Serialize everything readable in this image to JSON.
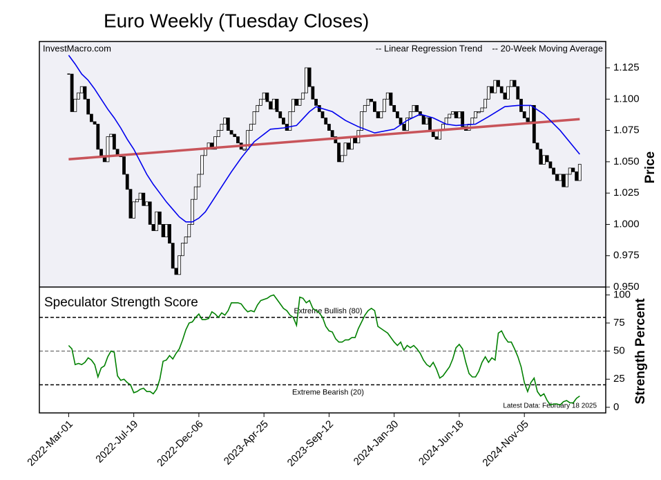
{
  "chart_data": [
    {
      "type": "candlestick",
      "title": "Euro Weekly (Tuesday Closes)",
      "annotation": "InvestMacro.com",
      "ylabel": "Price",
      "legend": "upper right",
      "xlim": [
        -9,
        165
      ],
      "ylim": [
        0.95,
        1.146
      ],
      "yticks": [
        {
          "value": 0.95,
          "label": "0.950"
        },
        0.975,
        {
          "value": 1.0,
          "label": "1.000"
        },
        1.025,
        {
          "value": 1.05,
          "label": "1.050"
        },
        1.075,
        {
          "value": 1.1,
          "label": "1.100"
        },
        1.125
      ],
      "series": [
        {
          "type": "candlestick",
          "color": "#000000",
          "values": [
            1.12,
            1.09,
            1.1,
            1.105,
            1.11,
            1.1,
            1.088,
            1.082,
            1.08,
            1.06,
            1.055,
            1.05,
            1.07,
            1.072,
            1.06,
            1.055,
            1.054,
            1.04,
            1.028,
            1.005,
            1.018,
            1.02,
            1.025,
            1.015,
            1.018,
            1.0,
            0.995,
            1.01,
            1.0,
            0.99,
            1.0,
            0.985,
            0.965,
            0.96,
            0.975,
            0.985,
            0.99,
            1.0,
            1.02,
            1.03,
            1.04,
            1.055,
            1.06,
            1.065,
            1.06,
            1.07,
            1.075,
            1.08,
            1.085,
            1.075,
            1.072,
            1.07,
            1.065,
            1.06,
            1.06,
            1.075,
            1.08,
            1.09,
            1.095,
            1.1,
            1.105,
            1.098,
            1.092,
            1.1,
            1.09,
            1.085,
            1.08,
            1.075,
            1.09,
            1.1,
            1.095,
            1.1,
            1.105,
            1.125,
            1.11,
            1.1,
            1.095,
            1.09,
            1.085,
            1.08,
            1.075,
            1.07,
            1.065,
            1.05,
            1.055,
            1.065,
            1.06,
            1.07,
            1.065,
            1.075,
            1.09,
            1.095,
            1.1,
            1.098,
            1.09,
            1.085,
            1.09,
            1.1,
            1.105,
            1.095,
            1.09,
            1.085,
            1.08,
            1.075,
            1.085,
            1.09,
            1.095,
            1.09,
            1.087,
            1.08,
            1.085,
            1.075,
            1.07,
            1.068,
            1.075,
            1.08,
            1.085,
            1.088,
            1.09,
            1.085,
            1.09,
            1.078,
            1.075,
            1.08,
            1.085,
            1.09,
            1.09,
            1.093,
            1.1,
            1.11,
            1.105,
            1.115,
            1.11,
            1.105,
            1.1,
            1.11,
            1.115,
            1.11,
            1.1,
            1.09,
            1.085,
            1.082,
            1.095,
            1.065,
            1.06,
            1.048,
            1.055,
            1.05,
            1.045,
            1.04,
            1.035,
            1.04,
            1.03,
            1.04,
            1.045,
            1.042,
            1.035,
            1.048
          ]
        },
        {
          "type": "line",
          "name": "-- Linear Regression Trend",
          "color": "#c8545a",
          "x": [
            0,
            157
          ],
          "values": [
            1.052,
            1.084
          ]
        },
        {
          "type": "line",
          "name": "-- 20-Week Moving Average",
          "color": "#0000ee",
          "x": [
            0,
            2,
            4,
            6,
            8,
            10,
            12,
            14,
            16,
            18,
            20,
            22,
            24,
            26,
            28,
            30,
            32,
            34,
            36,
            38,
            40,
            42,
            44,
            47,
            50,
            53,
            57,
            62,
            66,
            70,
            74,
            76,
            81,
            85,
            89,
            94,
            100,
            104,
            108,
            112,
            116,
            119,
            125,
            129,
            134,
            138,
            142,
            146,
            151,
            157
          ],
          "values": [
            1.135,
            1.128,
            1.12,
            1.115,
            1.108,
            1.1,
            1.092,
            1.085,
            1.077,
            1.068,
            1.06,
            1.05,
            1.04,
            1.032,
            1.025,
            1.018,
            1.012,
            1.006,
            1.002,
            1.002,
            1.005,
            1.01,
            1.018,
            1.03,
            1.042,
            1.053,
            1.066,
            1.076,
            1.077,
            1.079,
            1.09,
            1.094,
            1.09,
            1.083,
            1.078,
            1.073,
            1.076,
            1.083,
            1.088,
            1.085,
            1.08,
            1.079,
            1.08,
            1.086,
            1.094,
            1.095,
            1.095,
            1.088,
            1.075,
            1.056
          ]
        }
      ]
    },
    {
      "type": "line",
      "title": "Speculator Strength Score",
      "annotation": "Latest Data: February 18 2025",
      "ylabel": "Strength Percent",
      "xlim": [
        -9,
        165
      ],
      "ylim": [
        -5,
        107
      ],
      "yticks": [
        0,
        25,
        50,
        75,
        100
      ],
      "xticks": [
        {
          "value": 0,
          "label": "2022-Mar-01"
        },
        {
          "value": 20,
          "label": "2022-Jul-19"
        },
        {
          "value": 40,
          "label": "2022-Dec-06"
        },
        {
          "value": 60,
          "label": "2023-Apr-25"
        },
        {
          "value": 80,
          "label": "2023-Sep-12"
        },
        {
          "value": 100,
          "label": "2024-Jan-30"
        },
        {
          "value": 120,
          "label": "2024-Jun-18"
        },
        {
          "value": 140,
          "label": "2024-Nov-05"
        }
      ],
      "hlines": [
        {
          "value": 80,
          "label": "Extreme Bullish (80)",
          "color": "#000000"
        },
        {
          "value": 50,
          "color": "#808080"
        },
        {
          "value": 20,
          "label": "Extreme Bearish (20)",
          "color": "#000000"
        }
      ],
      "series": [
        {
          "type": "line",
          "color": "#008000",
          "values": [
            55,
            52,
            38,
            39,
            38,
            40,
            44,
            42,
            38,
            27,
            35,
            37,
            45,
            50,
            49,
            28,
            24,
            25,
            22,
            20,
            13,
            14,
            16,
            17,
            14,
            14,
            12,
            16,
            25,
            41,
            42,
            46,
            43,
            48,
            52,
            60,
            69,
            75,
            76,
            80,
            83,
            78,
            78,
            79,
            85,
            83,
            80,
            84,
            82,
            86,
            93,
            93,
            93,
            92,
            88,
            85,
            86,
            85,
            91,
            95,
            96,
            97,
            99,
            100,
            96,
            92,
            88,
            86,
            82,
            80,
            73,
            98,
            97,
            93,
            95,
            88,
            86,
            84,
            80,
            72,
            68,
            67,
            61,
            58,
            58,
            60,
            60,
            62,
            62,
            70,
            76,
            82,
            86,
            88,
            86,
            72,
            70,
            68,
            66,
            62,
            58,
            55,
            58,
            51,
            55,
            53,
            55,
            52,
            48,
            42,
            38,
            36,
            40,
            34,
            26,
            28,
            32,
            36,
            43,
            53,
            56,
            52,
            40,
            30,
            27,
            27,
            32,
            40,
            45,
            40,
            44,
            42,
            66,
            68,
            62,
            58,
            58,
            52,
            45,
            36,
            22,
            14,
            22,
            26,
            14,
            10,
            12,
            6,
            2,
            3,
            3,
            2,
            5,
            6,
            4,
            4,
            8,
            10
          ]
        }
      ]
    }
  ]
}
